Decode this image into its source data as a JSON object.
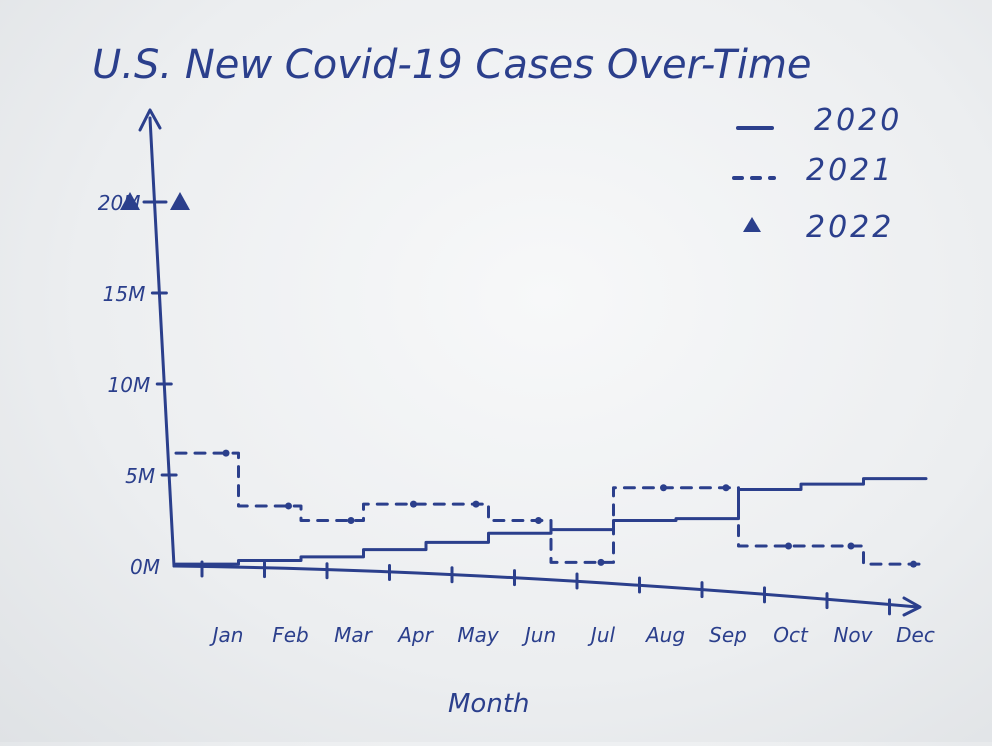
{
  "chart_data": {
    "type": "line",
    "title": "U.S. New Covid-19 Cases Over-Time",
    "xlabel": "Month",
    "ylabel": "",
    "categories": [
      "Jan",
      "Feb",
      "Mar",
      "Apr",
      "May",
      "Jun",
      "Jul",
      "Aug",
      "Sep",
      "Oct",
      "Nov",
      "Dec"
    ],
    "yticks": [
      "0M",
      "5M",
      "10M",
      "15M",
      "20M"
    ],
    "ytick_values": [
      0,
      5,
      10,
      15,
      20
    ],
    "ylim": [
      0,
      22
    ],
    "legend_position": "top-right",
    "series": [
      {
        "name": "2020",
        "style": "solid",
        "values": [
          0.1,
          0.3,
          0.5,
          0.9,
          1.3,
          1.8,
          2.0,
          2.5,
          2.6,
          4.2,
          4.5,
          4.8
        ]
      },
      {
        "name": "2021",
        "style": "dashed",
        "values": [
          6.2,
          3.3,
          2.5,
          3.4,
          3.4,
          2.5,
          0.2,
          4.3,
          4.3,
          1.1,
          1.1,
          0.1
        ]
      },
      {
        "name": "2022",
        "style": "triangle",
        "values": [
          20.0,
          20.0,
          null,
          null,
          null,
          null,
          null,
          null,
          null,
          null,
          null,
          null
        ]
      }
    ],
    "colors": {
      "ink": "#2b3f8c"
    }
  }
}
